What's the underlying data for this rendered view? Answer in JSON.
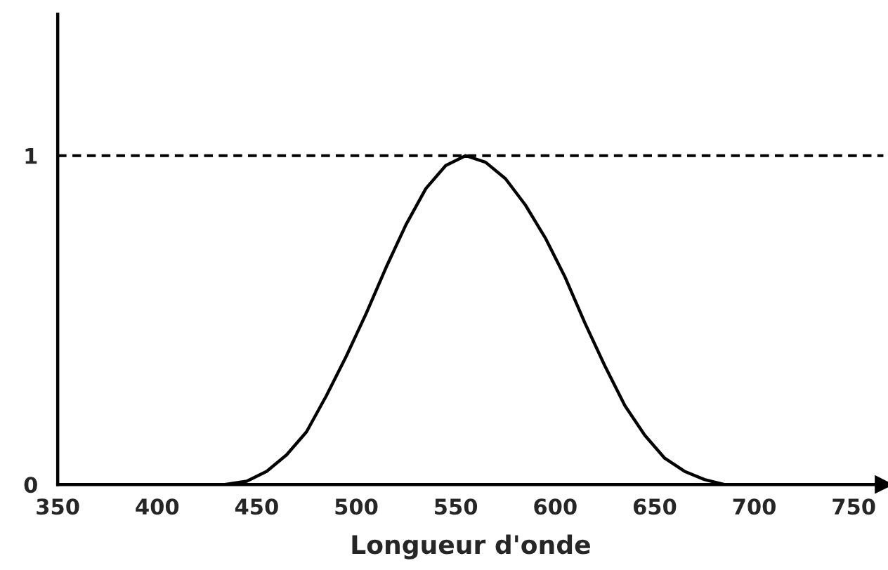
{
  "chart_data": {
    "type": "line",
    "xlabel": "Longueur d'onde",
    "x": [
      434,
      445,
      455,
      465,
      475,
      485,
      495,
      505,
      515,
      525,
      535,
      545,
      555,
      565,
      575,
      585,
      595,
      605,
      615,
      625,
      635,
      645,
      655,
      665,
      675,
      685
    ],
    "series": [
      {
        "color": "#000000",
        "values": [
          0,
          0.01,
          0.04,
          0.09,
          0.16,
          0.27,
          0.39,
          0.52,
          0.66,
          0.79,
          0.9,
          0.97,
          1.0,
          0.98,
          0.93,
          0.85,
          0.75,
          0.63,
          0.49,
          0.36,
          0.24,
          0.15,
          0.08,
          0.04,
          0.015,
          0
        ]
      }
    ],
    "xlim": [
      350,
      765
    ],
    "xticks": [
      350,
      400,
      450,
      500,
      550,
      600,
      650,
      700,
      750
    ],
    "ylim": [
      0,
      1.43
    ],
    "yticks": [
      0,
      1
    ],
    "ref_lines": [
      {
        "axis": "y",
        "value": 1,
        "line_style": "dotted",
        "color": "#000000"
      }
    ],
    "grid": false,
    "legend": false,
    "marker": "none",
    "line_style": "solid"
  }
}
